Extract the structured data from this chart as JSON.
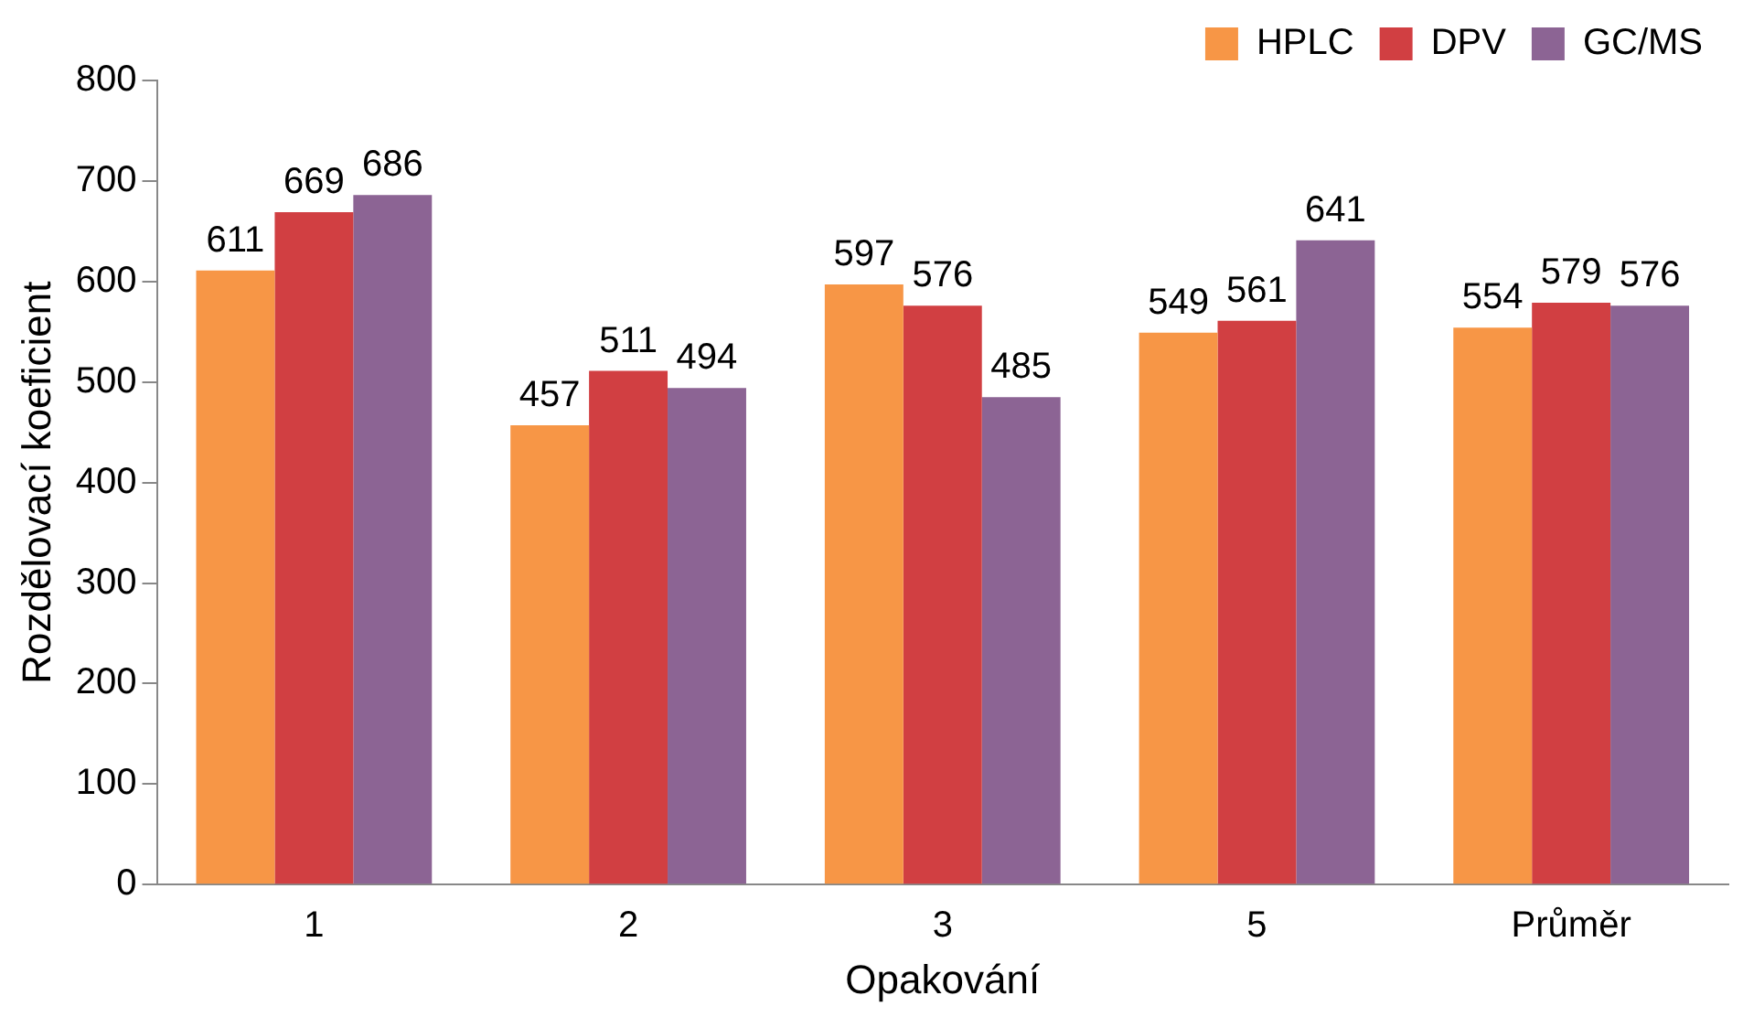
{
  "chart_data": {
    "type": "bar",
    "xlabel": "Opakování",
    "ylabel": "Rozdělovací koeficient",
    "categories": [
      "1",
      "2",
      "3",
      "5",
      "Průměr"
    ],
    "series": [
      {
        "name": "HPLC",
        "color": "#f79646",
        "values": [
          611,
          457,
          597,
          549,
          554
        ]
      },
      {
        "name": "DPV",
        "color": "#d13f42",
        "values": [
          669,
          511,
          576,
          561,
          579
        ]
      },
      {
        "name": "GC/MS",
        "color": "#8c6494",
        "values": [
          686,
          494,
          485,
          641,
          576
        ]
      }
    ],
    "ylim": [
      0,
      800
    ],
    "yticks": [
      0,
      100,
      200,
      300,
      400,
      500,
      600,
      700,
      800
    ],
    "grid": false,
    "legend": "top right",
    "data_labels": true
  }
}
